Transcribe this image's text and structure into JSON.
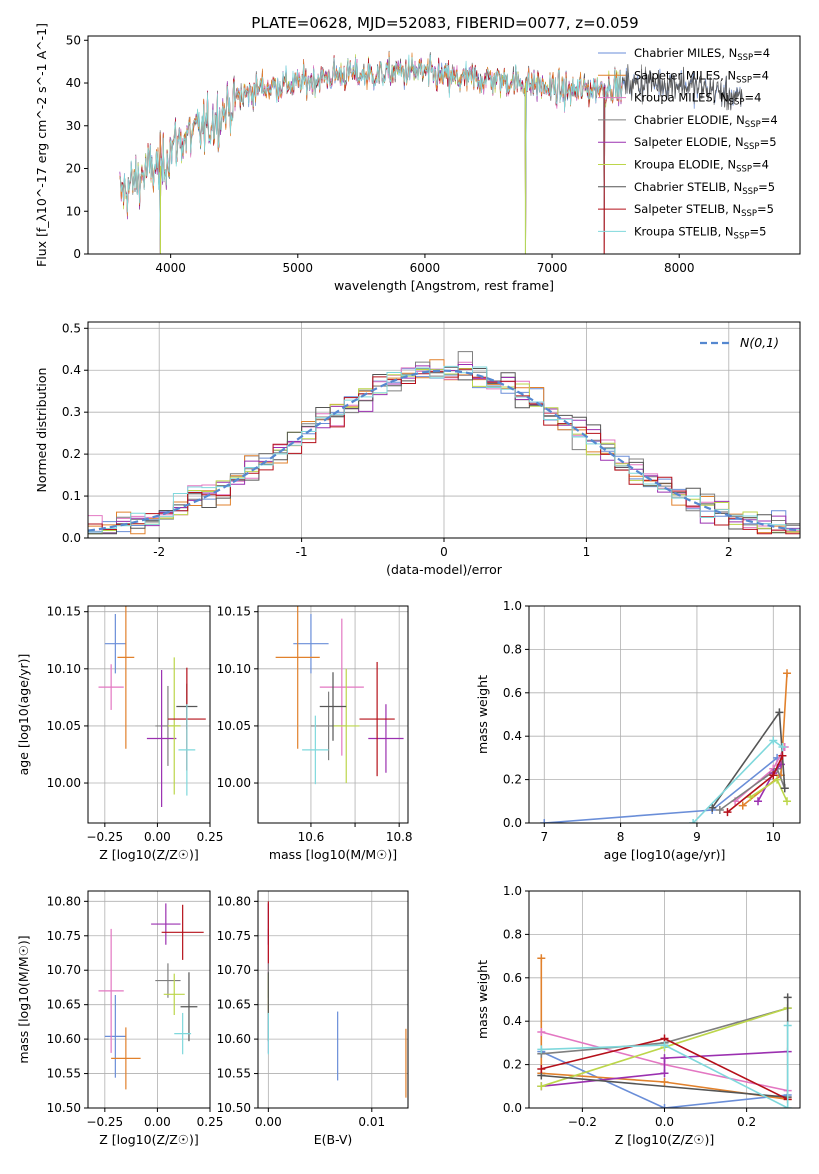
{
  "colors": [
    "#6a8ed8",
    "#e1812c",
    "#e377c2",
    "#7f7f7f",
    "#9b30b0",
    "#bcd64a",
    "#555555",
    "#b5101a",
    "#7fd8dc"
  ],
  "chart_data": [
    {
      "id": "spectrum",
      "type": "line",
      "title": "PLATE=0628, MJD=52083, FIBERID=0077, z=0.059",
      "xlabel": "wavelength [Angstrom, rest frame]",
      "ylabel": "Flux [f_λ10^-17 erg cm^-2 s^-1 A^-1]",
      "xlim": [
        3350,
        8950
      ],
      "ylim": [
        0,
        51
      ],
      "xticks": [
        4000,
        5000,
        6000,
        7000,
        8000
      ],
      "yticks": [
        0,
        10,
        20,
        30,
        40,
        50
      ],
      "grid": false,
      "legend": "top-right",
      "legend_entries": [
        {
          "name": "Chabrier MILES",
          "nssp": "4"
        },
        {
          "name": "Salpeter MILES",
          "nssp": "4"
        },
        {
          "name": "Kroupa MILES",
          "nssp": "4"
        },
        {
          "name": "Chabrier ELODIE",
          "nssp": "4"
        },
        {
          "name": "Salpeter ELODIE",
          "nssp": "5"
        },
        {
          "name": "Kroupa ELODIE",
          "nssp": "4"
        },
        {
          "name": "Chabrier STELIB",
          "nssp": "5"
        },
        {
          "name": "Salpeter STELIB",
          "nssp": "5"
        },
        {
          "name": "Kroupa STELIB",
          "nssp": "5"
        }
      ],
      "continuum": {
        "x": [
          3600,
          3800,
          3950,
          4000,
          4100,
          4300,
          4500,
          4700,
          5000,
          5300,
          5600,
          5900,
          6200,
          6500,
          6800,
          7100,
          7400,
          7700,
          8000,
          8300,
          8500
        ],
        "y": [
          14,
          19,
          21,
          25,
          27,
          30,
          36,
          39,
          40,
          42,
          42,
          43,
          41,
          41,
          40,
          38,
          39,
          40,
          40,
          38,
          36
        ]
      },
      "dips": [
        {
          "x": 3920,
          "y": 0
        },
        {
          "x": 6790,
          "y": 0
        },
        {
          "x": 7410,
          "y": 0
        }
      ]
    },
    {
      "id": "residuals",
      "type": "bar",
      "xlabel": "(data-model)/error",
      "ylabel": "Normed distribution",
      "xlim": [
        -2.5,
        2.5
      ],
      "ylim": [
        0,
        0.515
      ],
      "xticks": [
        -2,
        -1,
        0,
        1,
        2
      ],
      "yticks": [
        0.0,
        0.1,
        0.2,
        0.3,
        0.4,
        0.5
      ],
      "grid": true,
      "legend": "top-right",
      "reference_label": "N(0,1)",
      "bin_width": 0.1
    },
    {
      "id": "age_vs_Z",
      "type": "scatter",
      "xlabel": "Z [log10(Z/Z☉)]",
      "ylabel": "age  [log10(age/yr)]",
      "xlim": [
        -0.33,
        0.25
      ],
      "ylim": [
        9.965,
        10.155
      ],
      "xticks": [
        -0.25,
        0.0,
        0.25
      ],
      "xticklabels": [
        "−0.25",
        "0.00",
        "0.25"
      ],
      "yticks": [
        10.0,
        10.05,
        10.1,
        10.15
      ],
      "yticklabels": [
        "10.00",
        "10.05",
        "10.10",
        "10.15"
      ],
      "grid": true,
      "points": [
        {
          "x": -0.2,
          "y": 10.122,
          "xerr": 0.05,
          "yerr": 0.026
        },
        {
          "x": -0.15,
          "y": 10.11,
          "xerr": 0.04,
          "yerr": 0.08
        },
        {
          "x": -0.22,
          "y": 10.084,
          "xerr": 0.06,
          "yerr": 0.02
        },
        {
          "x": 0.05,
          "y": 10.05,
          "xerr": 0.06,
          "yerr": 0.035
        },
        {
          "x": 0.02,
          "y": 10.039,
          "xerr": 0.07,
          "yerr": 0.06
        },
        {
          "x": 0.08,
          "y": 10.05,
          "xerr": 0.03,
          "yerr": 0.06
        },
        {
          "x": 0.14,
          "y": 10.067,
          "xerr": 0.05,
          "yerr": 0.02
        },
        {
          "x": 0.14,
          "y": 10.056,
          "xerr": 0.09,
          "yerr": 0.045
        },
        {
          "x": 0.14,
          "y": 10.029,
          "xerr": 0.04,
          "yerr": 0.04
        }
      ]
    },
    {
      "id": "age_vs_mass",
      "type": "scatter",
      "xlabel": "mass [log10(M/M☉)]",
      "xlim": [
        10.48,
        10.82
      ],
      "ylim": [
        9.965,
        10.155
      ],
      "xticks": [
        10.6,
        10.7,
        10.8
      ],
      "xticklabels": [
        "10.6",
        "",
        "10.8"
      ],
      "yticks": [
        10.0,
        10.05,
        10.1,
        10.15
      ],
      "yticklabels": [
        "10.00",
        "10.05",
        "10.10",
        "10.15"
      ],
      "grid": true,
      "points": [
        {
          "x": 10.6,
          "y": 10.122,
          "xerr": 0.04,
          "yerr": 0.026
        },
        {
          "x": 10.57,
          "y": 10.11,
          "xerr": 0.05,
          "yerr": 0.08
        },
        {
          "x": 10.67,
          "y": 10.084,
          "xerr": 0.05,
          "yerr": 0.06
        },
        {
          "x": 10.64,
          "y": 10.05,
          "xerr": 0.04,
          "yerr": 0.03
        },
        {
          "x": 10.77,
          "y": 10.039,
          "xerr": 0.04,
          "yerr": 0.03
        },
        {
          "x": 10.68,
          "y": 10.05,
          "xerr": 0.03,
          "yerr": 0.05
        },
        {
          "x": 10.65,
          "y": 10.067,
          "xerr": 0.03,
          "yerr": 0.03
        },
        {
          "x": 10.75,
          "y": 10.056,
          "xerr": 0.04,
          "yerr": 0.05
        },
        {
          "x": 10.61,
          "y": 10.029,
          "xerr": 0.03,
          "yerr": 0.03
        }
      ]
    },
    {
      "id": "mass_weight_vs_age",
      "type": "line",
      "xlabel": "age  [log10(age/yr)]",
      "ylabel": "mass weight",
      "xlim": [
        6.8,
        10.35
      ],
      "ylim": [
        0,
        1
      ],
      "xticks": [
        7,
        8,
        9,
        10
      ],
      "yticks": [
        0.0,
        0.2,
        0.4,
        0.6,
        0.8,
        1.0
      ],
      "grid": true,
      "series": [
        {
          "x": [
            7.0,
            9.2,
            10.05
          ],
          "y": [
            0.0,
            0.06,
            0.3
          ]
        },
        {
          "x": [
            9.6,
            10.1,
            10.18
          ],
          "y": [
            0.08,
            0.22,
            0.69
          ]
        },
        {
          "x": [
            9.5,
            10.0,
            10.15
          ],
          "y": [
            0.1,
            0.25,
            0.35
          ]
        },
        {
          "x": [
            9.3,
            10.05,
            10.15
          ],
          "y": [
            0.06,
            0.25,
            0.16
          ]
        },
        {
          "x": [
            9.8,
            10.0,
            10.1
          ],
          "y": [
            0.1,
            0.23,
            0.27
          ]
        },
        {
          "x": [
            9.7,
            10.05,
            10.18
          ],
          "y": [
            0.12,
            0.2,
            0.1
          ]
        },
        {
          "x": [
            9.2,
            10.08,
            10.15
          ],
          "y": [
            0.07,
            0.51,
            0.16
          ]
        },
        {
          "x": [
            9.4,
            10.0,
            10.12
          ],
          "y": [
            0.05,
            0.22,
            0.31
          ]
        },
        {
          "x": [
            8.95,
            10.0,
            10.12
          ],
          "y": [
            0.0,
            0.38,
            0.35
          ]
        }
      ]
    },
    {
      "id": "mass_vs_Z",
      "type": "scatter",
      "xlabel": "Z [log10(Z/Z☉)]",
      "ylabel": "mass [log10(M/M☉)]",
      "xlim": [
        -0.33,
        0.25
      ],
      "ylim": [
        10.5,
        10.815
      ],
      "xticks": [
        -0.25,
        0.0,
        0.25
      ],
      "xticklabels": [
        "−0.25",
        "0.00",
        "0.25"
      ],
      "yticks": [
        10.5,
        10.55,
        10.6,
        10.65,
        10.7,
        10.75,
        10.8
      ],
      "yticklabels": [
        "10.50",
        "10.55",
        "10.60",
        "10.65",
        "10.70",
        "10.75",
        "10.80"
      ],
      "grid": true,
      "points": [
        {
          "x": -0.2,
          "y": 10.604,
          "xerr": 0.05,
          "yerr": 0.06
        },
        {
          "x": -0.15,
          "y": 10.572,
          "xerr": 0.07,
          "yerr": 0.045
        },
        {
          "x": -0.22,
          "y": 10.67,
          "xerr": 0.06,
          "yerr": 0.09
        },
        {
          "x": 0.05,
          "y": 10.685,
          "xerr": 0.06,
          "yerr": 0.025
        },
        {
          "x": 0.04,
          "y": 10.767,
          "xerr": 0.07,
          "yerr": 0.03
        },
        {
          "x": 0.08,
          "y": 10.665,
          "xerr": 0.05,
          "yerr": 0.03
        },
        {
          "x": 0.15,
          "y": 10.647,
          "xerr": 0.04,
          "yerr": 0.05
        },
        {
          "x": 0.12,
          "y": 10.755,
          "xerr": 0.1,
          "yerr": 0.04
        },
        {
          "x": 0.12,
          "y": 10.608,
          "xerr": 0.04,
          "yerr": 0.03
        }
      ]
    },
    {
      "id": "mass_vs_EBV",
      "type": "scatter",
      "xlabel": "E(B-V)",
      "xlim": [
        -0.001,
        0.0135
      ],
      "ylim": [
        10.5,
        10.815
      ],
      "xticks": [
        0.0,
        0.01
      ],
      "xticklabels": [
        "0.00",
        "0.01"
      ],
      "yticks": [
        10.5,
        10.55,
        10.6,
        10.65,
        10.7,
        10.75,
        10.8
      ],
      "yticklabels": [
        "10.50",
        "10.55",
        "10.60",
        "10.65",
        "10.70",
        "10.75",
        "10.80"
      ],
      "grid": true,
      "points": [
        {
          "x": 0.0067,
          "y": 10.59,
          "xerr": 0,
          "yerr": 0.05
        },
        {
          "x": 0.0133,
          "y": 10.565,
          "xerr": 0,
          "yerr": 0.05
        },
        {
          "x": 0.0,
          "y": 10.67,
          "xerr": 0,
          "yerr": 0.09
        },
        {
          "x": 0.0,
          "y": 10.685,
          "xerr": 0,
          "yerr": 0.025
        },
        {
          "x": 0.0,
          "y": 10.767,
          "xerr": 0,
          "yerr": 0.03
        },
        {
          "x": 0.0,
          "y": 10.665,
          "xerr": 0,
          "yerr": 0.03
        },
        {
          "x": 0.0,
          "y": 10.647,
          "xerr": 0,
          "yerr": 0.05
        },
        {
          "x": 0.0,
          "y": 10.755,
          "xerr": 0,
          "yerr": 0.045
        },
        {
          "x": 0.0,
          "y": 10.608,
          "xerr": 0,
          "yerr": 0.03
        }
      ]
    },
    {
      "id": "mass_weight_vs_Z",
      "type": "line",
      "xlabel": "Z [log10(Z/Z☉)]",
      "ylabel": "mass weight",
      "xlim": [
        -0.33,
        0.33
      ],
      "ylim": [
        0,
        1
      ],
      "xticks": [
        -0.2,
        0.0,
        0.2
      ],
      "xticklabels": [
        "−0.2",
        "0.0",
        "0.2"
      ],
      "yticks": [
        0.0,
        0.2,
        0.4,
        0.6,
        0.8,
        1.0
      ],
      "grid": true,
      "series": [
        {
          "x": [
            -0.3,
            0.0,
            0.3
          ],
          "y": [
            0.26,
            0.0,
            0.06
          ]
        },
        {
          "x": [
            -0.3,
            -0.3,
            0.0,
            0.3
          ],
          "y": [
            0.69,
            0.16,
            0.12,
            0.04
          ]
        },
        {
          "x": [
            -0.3,
            0.0,
            0.3
          ],
          "y": [
            0.35,
            0.2,
            0.08
          ]
        },
        {
          "x": [
            -0.3,
            0.0,
            0.3
          ],
          "y": [
            0.25,
            0.3,
            0.46
          ]
        },
        {
          "x": [
            -0.3,
            0.0,
            0.0,
            0.3
          ],
          "y": [
            0.1,
            0.16,
            0.23,
            0.26
          ]
        },
        {
          "x": [
            -0.3,
            0.0,
            0.3
          ],
          "y": [
            0.1,
            0.28,
            0.46
          ]
        },
        {
          "x": [
            -0.3,
            0.3,
            0.3
          ],
          "y": [
            0.15,
            0.05,
            0.51
          ]
        },
        {
          "x": [
            -0.3,
            0.0,
            0.3
          ],
          "y": [
            0.18,
            0.32,
            0.04
          ]
        },
        {
          "x": [
            -0.3,
            0.0,
            0.3,
            0.3
          ],
          "y": [
            0.27,
            0.29,
            0.0,
            0.38
          ]
        }
      ]
    }
  ]
}
